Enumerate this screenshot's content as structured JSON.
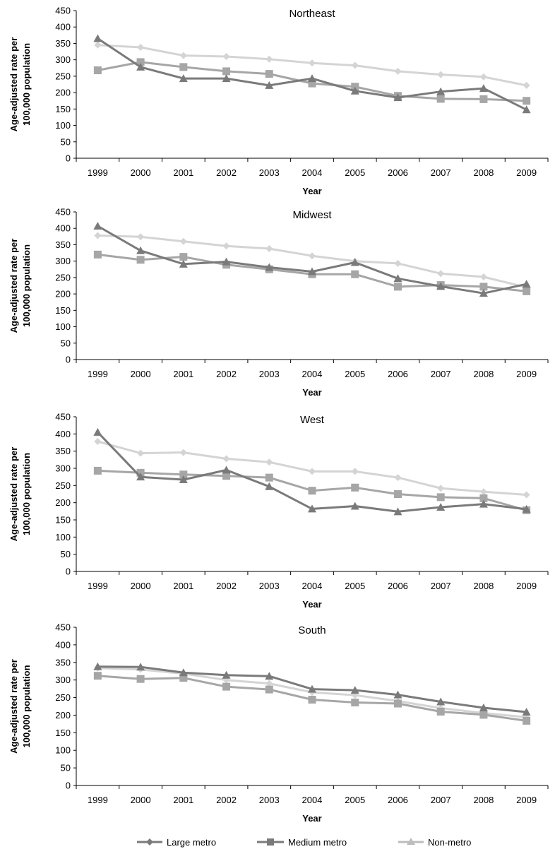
{
  "legend": {
    "large": "Large metro",
    "medium": "Medium metro",
    "nonmetro": "Non-metro"
  },
  "colors": {
    "large": "#7a7a7a",
    "medium": "#a6a6a6",
    "nonmetro": "#d4d4d4",
    "axis": "#000000"
  },
  "chart_data": [
    {
      "type": "line",
      "title": "Northeast",
      "xlabel": "Year",
      "ylabel_line1": "Age-adjusted rate per",
      "ylabel_line2": "100,000 population",
      "ylim": [
        0,
        450
      ],
      "yticks": [
        0,
        50,
        100,
        150,
        200,
        250,
        300,
        350,
        400,
        450
      ],
      "categories": [
        "1999",
        "2000",
        "2001",
        "2002",
        "2003",
        "2004",
        "2005",
        "2006",
        "2007",
        "2008",
        "2009"
      ],
      "series": [
        {
          "name": "Large metro",
          "key": "large",
          "marker": "triangle",
          "values": [
            365,
            278,
            243,
            243,
            222,
            243,
            205,
            185,
            203,
            213,
            148
          ]
        },
        {
          "name": "Medium metro",
          "key": "medium",
          "marker": "square",
          "values": [
            268,
            293,
            278,
            265,
            257,
            228,
            218,
            190,
            181,
            180,
            175
          ]
        },
        {
          "name": "Non-metro",
          "key": "nonmetro",
          "marker": "diamond",
          "values": [
            345,
            338,
            313,
            310,
            302,
            290,
            283,
            265,
            255,
            248,
            222
          ]
        }
      ]
    },
    {
      "type": "line",
      "title": "Midwest",
      "xlabel": "Year",
      "ylabel_line1": "Age-adjusted rate per",
      "ylabel_line2": "100,000 population",
      "ylim": [
        0,
        450
      ],
      "yticks": [
        0,
        50,
        100,
        150,
        200,
        250,
        300,
        350,
        400,
        450
      ],
      "categories": [
        "1999",
        "2000",
        "2001",
        "2002",
        "2003",
        "2004",
        "2005",
        "2006",
        "2007",
        "2008",
        "2009"
      ],
      "series": [
        {
          "name": "Large metro",
          "key": "large",
          "marker": "triangle",
          "values": [
            407,
            332,
            291,
            298,
            281,
            268,
            296,
            247,
            223,
            202,
            230
          ]
        },
        {
          "name": "Medium metro",
          "key": "medium",
          "marker": "square",
          "values": [
            320,
            304,
            313,
            289,
            275,
            260,
            260,
            222,
            227,
            222,
            208
          ]
        },
        {
          "name": "Non-metro",
          "key": "nonmetro",
          "marker": "diamond",
          "values": [
            378,
            374,
            360,
            346,
            338,
            316,
            300,
            293,
            262,
            252,
            220
          ]
        }
      ]
    },
    {
      "type": "line",
      "title": "West",
      "xlabel": "Year",
      "ylabel_line1": "Age-adjusted rate per",
      "ylabel_line2": "100,000 population",
      "ylim": [
        0,
        450
      ],
      "yticks": [
        0,
        50,
        100,
        150,
        200,
        250,
        300,
        350,
        400,
        450
      ],
      "categories": [
        "1999",
        "2000",
        "2001",
        "2002",
        "2003",
        "2004",
        "2005",
        "2006",
        "2007",
        "2008",
        "2009"
      ],
      "series": [
        {
          "name": "Large metro",
          "key": "large",
          "marker": "triangle",
          "values": [
            405,
            275,
            267,
            295,
            247,
            182,
            190,
            174,
            187,
            196,
            181
          ]
        },
        {
          "name": "Medium metro",
          "key": "medium",
          "marker": "square",
          "values": [
            293,
            287,
            282,
            278,
            273,
            235,
            244,
            225,
            216,
            213,
            178
          ]
        },
        {
          "name": "Non-metro",
          "key": "nonmetro",
          "marker": "diamond",
          "values": [
            378,
            344,
            346,
            328,
            318,
            291,
            291,
            273,
            242,
            232,
            223
          ]
        }
      ]
    },
    {
      "type": "line",
      "title": "South",
      "xlabel": "Year",
      "ylabel_line1": "Age-adjusted rate per",
      "ylabel_line2": "100,000 population",
      "ylim": [
        0,
        450
      ],
      "yticks": [
        0,
        50,
        100,
        150,
        200,
        250,
        300,
        350,
        400,
        450
      ],
      "categories": [
        "1999",
        "2000",
        "2001",
        "2002",
        "2003",
        "2004",
        "2005",
        "2006",
        "2007",
        "2008",
        "2009"
      ],
      "series": [
        {
          "name": "Large metro",
          "key": "large",
          "marker": "triangle",
          "values": [
            338,
            337,
            321,
            314,
            311,
            274,
            271,
            258,
            238,
            221,
            209
          ]
        },
        {
          "name": "Medium metro",
          "key": "medium",
          "marker": "square",
          "values": [
            312,
            303,
            306,
            281,
            273,
            244,
            236,
            233,
            210,
            201,
            184
          ]
        },
        {
          "name": "Non-metro",
          "key": "nonmetro",
          "marker": "diamond",
          "values": [
            334,
            330,
            318,
            300,
            290,
            265,
            257,
            240,
            220,
            206,
            194
          ]
        }
      ]
    }
  ]
}
